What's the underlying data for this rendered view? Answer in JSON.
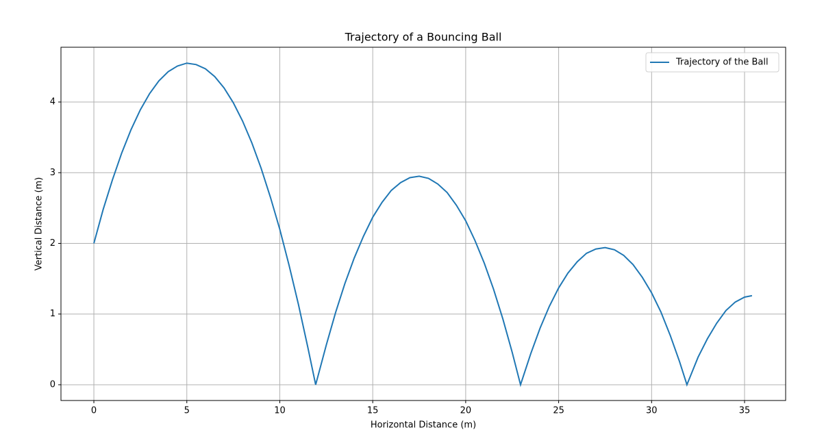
{
  "chart_data": {
    "type": "line",
    "title": "Trajectory of a Bouncing Ball",
    "xlabel": "Horizontal Distance (m)",
    "ylabel": "Vertical Distance (m)",
    "x": [
      0,
      0.5,
      1,
      1.5,
      2,
      2.5,
      3,
      3.5,
      4,
      4.5,
      5,
      5.5,
      6,
      6.5,
      7,
      7.5,
      8,
      8.5,
      9,
      9.5,
      10,
      10.5,
      11,
      11.5,
      11.93,
      12.5,
      13,
      13.5,
      14,
      14.5,
      15,
      15.5,
      16,
      16.5,
      17,
      17.5,
      18,
      18.5,
      19,
      19.5,
      20,
      20.5,
      21,
      21.5,
      22,
      22.5,
      22.95,
      23.5,
      24,
      24.5,
      25,
      25.5,
      26,
      26.5,
      27,
      27.5,
      28,
      28.5,
      29,
      29.5,
      30,
      30.5,
      31,
      31.5,
      31.9,
      32.5,
      33,
      33.5,
      34,
      34.5,
      35,
      35.4
    ],
    "series": [
      {
        "name": "Trajectory of the Ball",
        "color": "#1f77b4",
        "values": [
          2.0,
          2.48,
          2.9,
          3.28,
          3.61,
          3.89,
          4.12,
          4.3,
          4.43,
          4.51,
          4.55,
          4.53,
          4.47,
          4.36,
          4.2,
          3.99,
          3.73,
          3.42,
          3.06,
          2.65,
          2.2,
          1.69,
          1.14,
          0.54,
          0,
          0.56,
          1.02,
          1.43,
          1.79,
          2.1,
          2.37,
          2.58,
          2.75,
          2.86,
          2.93,
          2.95,
          2.92,
          2.84,
          2.72,
          2.54,
          2.32,
          2.04,
          1.72,
          1.35,
          0.93,
          0.46,
          0,
          0.44,
          0.8,
          1.11,
          1.37,
          1.58,
          1.74,
          1.86,
          1.92,
          1.94,
          1.91,
          1.83,
          1.7,
          1.52,
          1.3,
          1.03,
          0.7,
          0.33,
          0,
          0.39,
          0.65,
          0.87,
          1.05,
          1.17,
          1.24,
          1.26
        ]
      }
    ],
    "xlim": [
      -1.77,
      37.21
    ],
    "xticks": [
      0,
      5,
      10,
      15,
      20,
      25,
      30,
      35
    ],
    "ylim": [
      -0.223,
      4.775
    ],
    "yticks": [
      0,
      1,
      2,
      3,
      4
    ],
    "grid": true,
    "legend": "upper right"
  }
}
